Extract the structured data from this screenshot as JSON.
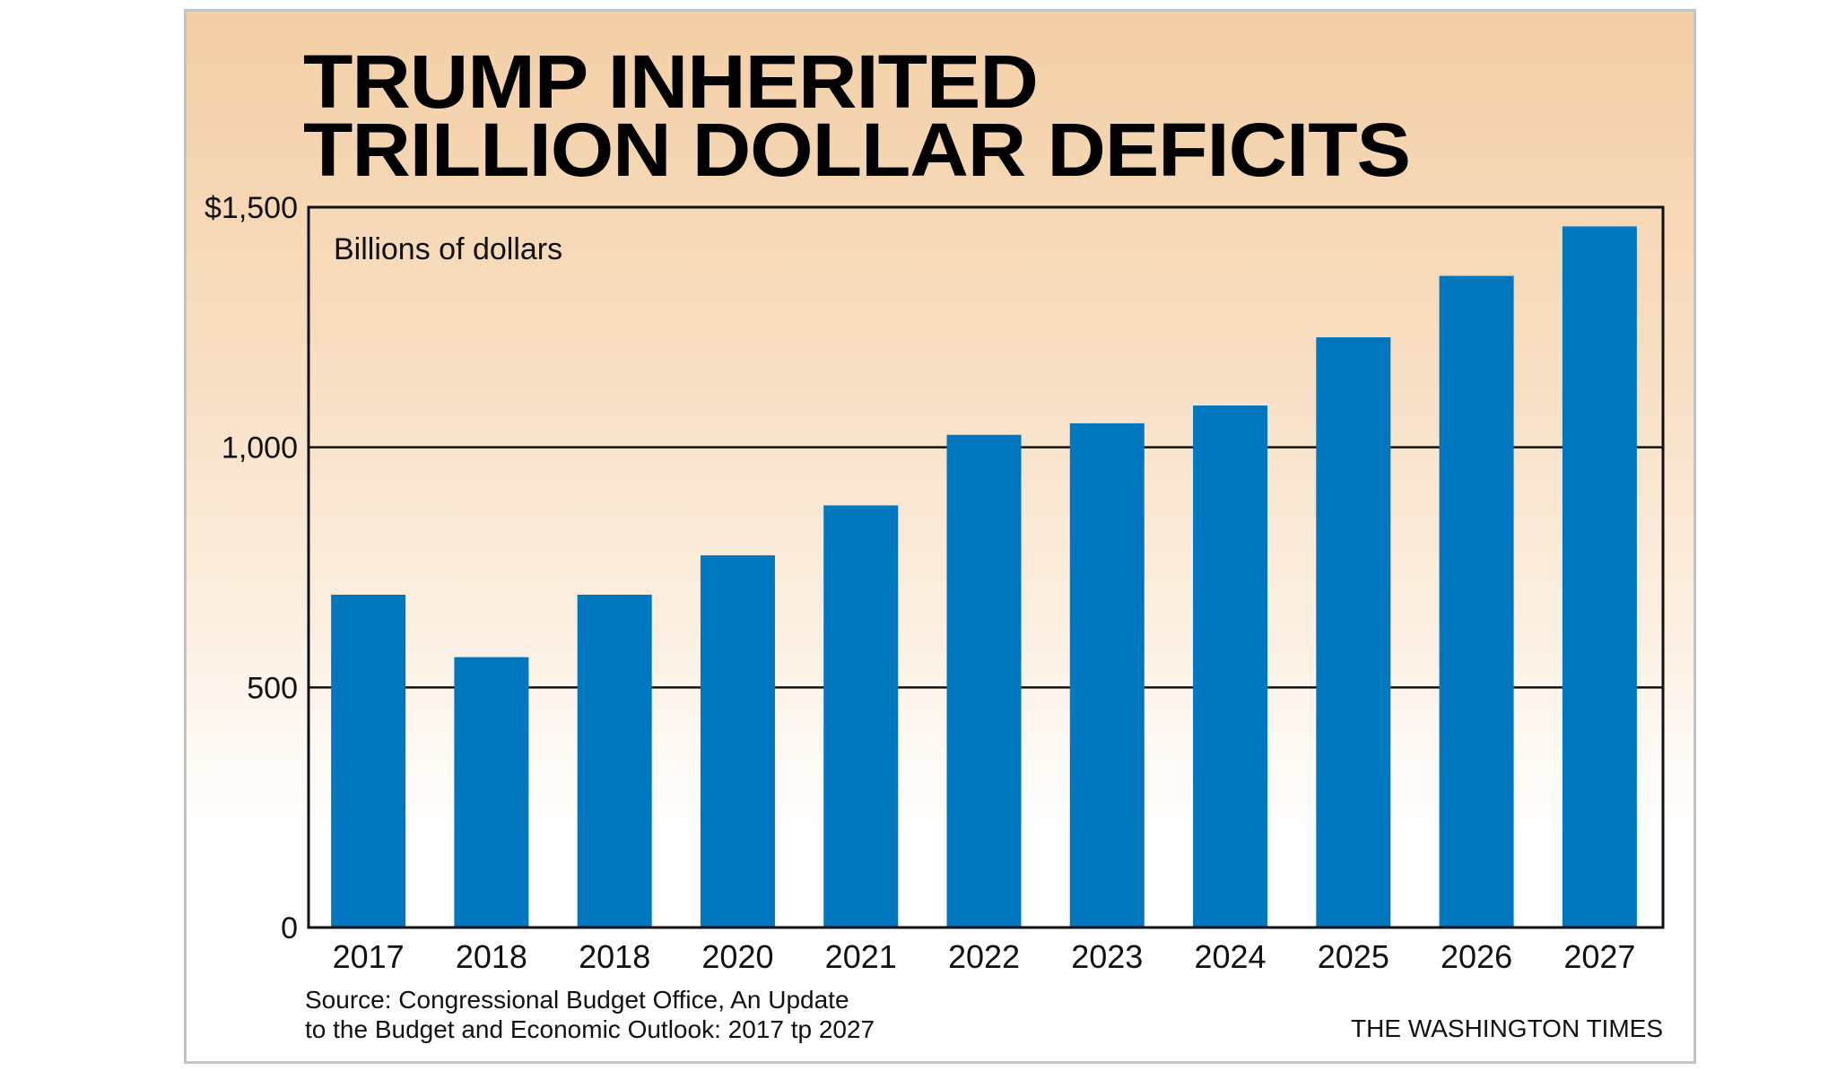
{
  "title": {
    "line1": "TRUMP INHERITED",
    "line2": "TRILLION DOLLAR DEFICITS"
  },
  "chart_data": {
    "type": "bar",
    "title": "TRUMP INHERITED TRILLION DOLLAR DEFICITS",
    "unit_label": "Billions of dollars",
    "categories": [
      "2017",
      "2018",
      "2018",
      "2020",
      "2021",
      "2022",
      "2023",
      "2024",
      "2025",
      "2026",
      "2027"
    ],
    "values": [
      693,
      563,
      693,
      775,
      879,
      1026,
      1050,
      1087,
      1229,
      1357,
      1460
    ],
    "ylim": [
      0,
      1500
    ],
    "yticks": [
      0,
      500,
      1000,
      1500
    ],
    "ytick_labels": [
      "0",
      "500",
      "1,000",
      "$1,500"
    ],
    "gridlines": [
      500,
      1000
    ],
    "xlabel": "",
    "ylabel": "",
    "bar_color": "#0077bf"
  },
  "source": {
    "line1": "Source: Congressional Budget Office, An Update",
    "line2": "to the Budget and Economic Outlook: 2017 tp 2027"
  },
  "credit": "THE WASHINGTON TIMES"
}
